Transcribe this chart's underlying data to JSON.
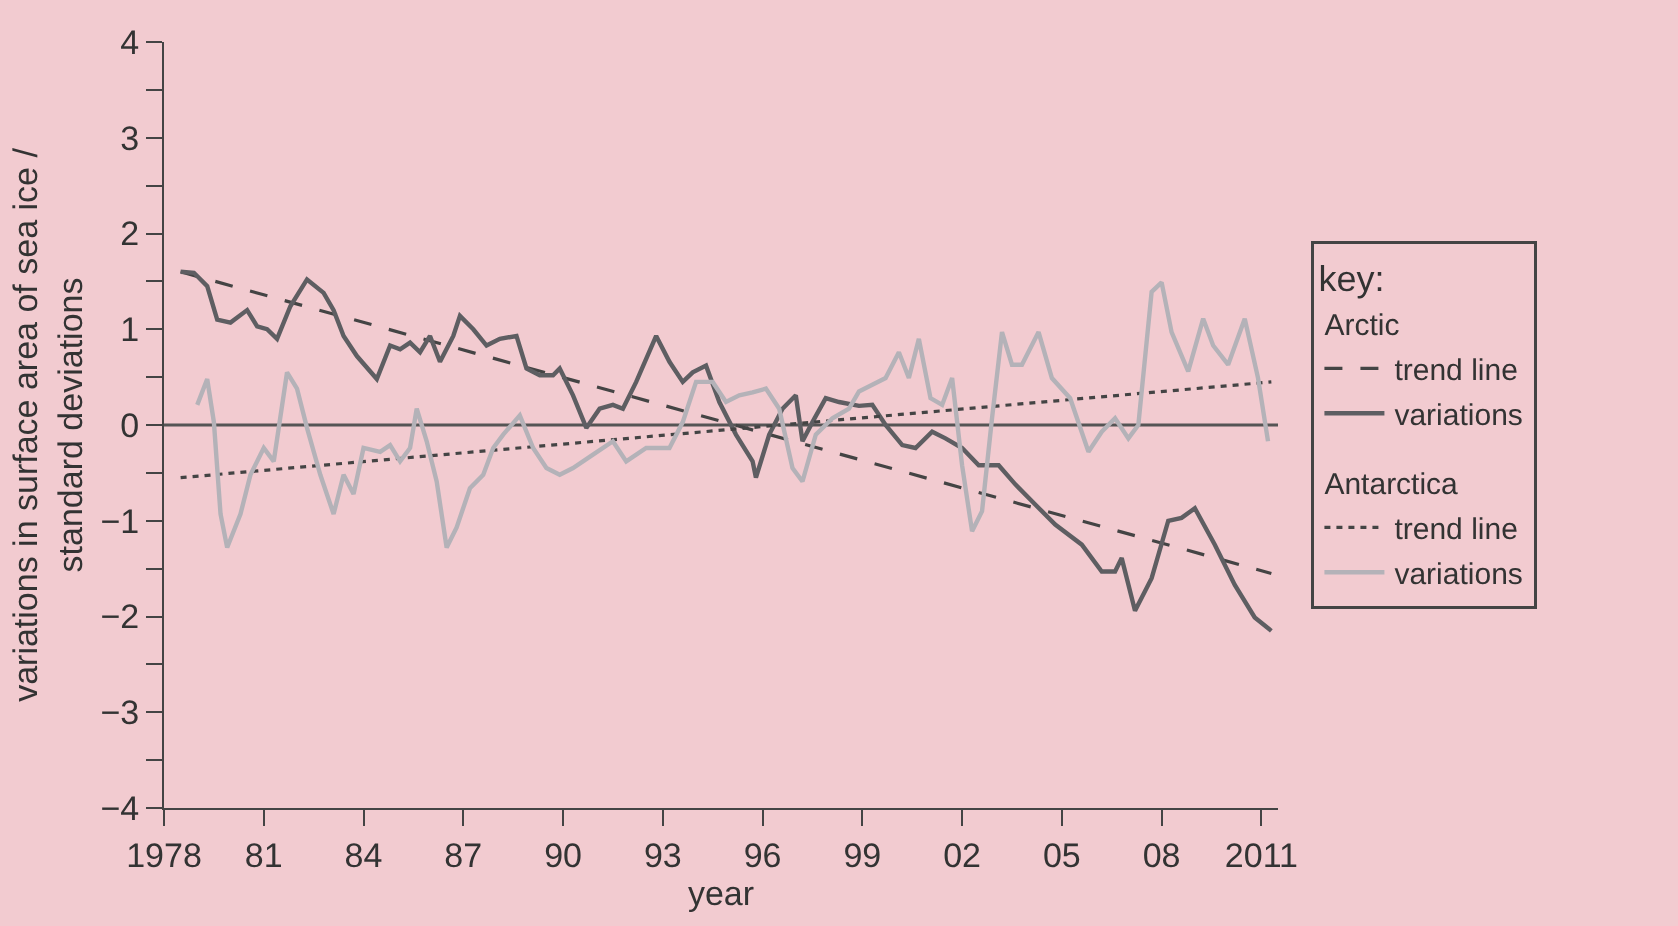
{
  "chart_data": {
    "type": "line",
    "xlabel": "year",
    "ylabel": "variations in surface area of sea ice /\nstandard deviations",
    "legend_title": "key:",
    "annotations": [
      "Arctic",
      "Antarctica"
    ],
    "legend": "right",
    "grid": false,
    "marker": "none",
    "xlim": [
      1978,
      2011.5
    ],
    "xticks": [
      1978,
      {
        "value": 1981,
        "label": "81"
      },
      {
        "value": 1984,
        "label": "84"
      },
      {
        "value": 1987,
        "label": "87"
      },
      {
        "value": 1990,
        "label": "90"
      },
      {
        "value": 1993,
        "label": "93"
      },
      {
        "value": 1996,
        "label": "96"
      },
      {
        "value": 1999,
        "label": "99"
      },
      {
        "value": 2002,
        "label": "02"
      },
      {
        "value": 2005,
        "label": "05"
      },
      {
        "value": 2008,
        "label": "08"
      },
      2011
    ],
    "ylim": [
      -4,
      4
    ],
    "yticks": [
      {
        "value": -4,
        "label": "−4"
      },
      {
        "value": -3.5,
        "label": null
      },
      {
        "value": -3,
        "label": "−3"
      },
      {
        "value": -2.5,
        "label": null
      },
      {
        "value": -2,
        "label": "−2"
      },
      {
        "value": -1.5,
        "label": null
      },
      {
        "value": -1,
        "label": "−1"
      },
      {
        "value": -0.5,
        "label": null
      },
      0,
      {
        "value": 0.5,
        "label": null
      },
      1,
      {
        "value": 1.5,
        "label": null
      },
      2,
      {
        "value": 2.5,
        "label": null
      },
      3,
      {
        "value": 3.5,
        "label": null
      },
      4
    ],
    "ref_lines": [
      {
        "axis": "y",
        "value": 0,
        "color": "#555555",
        "line_style": "solid"
      }
    ],
    "series": [
      {
        "name": "trend line",
        "color": "#444444",
        "line_style": "dashed",
        "x": [
          1978.5,
          2011.3
        ],
        "values": [
          1.6,
          -1.55
        ]
      },
      {
        "name": "variations",
        "color": "#5e5e62",
        "line_style": "solid",
        "x": [
          1978.5,
          1978.9,
          1979.3,
          1979.6,
          1980.0,
          1980.5,
          1980.8,
          1981.1,
          1981.4,
          1981.8,
          1982.3,
          1982.8,
          1983.1,
          1983.4,
          1983.8,
          1984.4,
          1984.8,
          1985.1,
          1985.4,
          1985.7,
          1986.0,
          1986.3,
          1986.7,
          1986.9,
          1987.3,
          1987.7,
          1988.1,
          1988.6,
          1988.9,
          1989.3,
          1989.7,
          1989.9,
          1990.3,
          1990.7,
          1991.1,
          1991.5,
          1991.8,
          1992.2,
          1992.8,
          1993.2,
          1993.6,
          1993.9,
          1994.3,
          1994.7,
          1995.2,
          1995.7,
          1995.8,
          1996.2,
          1996.6,
          1997.0,
          1997.2,
          1997.5,
          1997.9,
          1998.3,
          1998.9,
          1999.3,
          1999.7,
          2000.2,
          2000.6,
          2001.1,
          2001.5,
          2002.0,
          2002.5,
          2003.1,
          2003.6,
          2004.2,
          2004.8,
          2005.6,
          2006.2,
          2006.6,
          2006.8,
          2007.2,
          2007.7,
          2008.2,
          2008.6,
          2009.0,
          2009.6,
          2010.2,
          2010.8,
          2011.3
        ],
        "values": [
          1.6,
          1.59,
          1.45,
          1.1,
          1.07,
          1.2,
          1.03,
          1.0,
          0.9,
          1.24,
          1.52,
          1.38,
          1.2,
          0.93,
          0.72,
          0.48,
          0.83,
          0.79,
          0.86,
          0.76,
          0.93,
          0.66,
          0.93,
          1.14,
          1.0,
          0.83,
          0.9,
          0.93,
          0.59,
          0.52,
          0.52,
          0.59,
          0.31,
          -0.03,
          0.17,
          0.21,
          0.17,
          0.45,
          0.93,
          0.66,
          0.45,
          0.55,
          0.62,
          0.24,
          -0.1,
          -0.38,
          -0.55,
          -0.1,
          0.17,
          0.31,
          -0.17,
          0.03,
          0.28,
          0.24,
          0.2,
          0.21,
          0.0,
          -0.21,
          -0.24,
          -0.07,
          -0.14,
          -0.24,
          -0.42,
          -0.42,
          -0.62,
          -0.83,
          -1.04,
          -1.25,
          -1.53,
          -1.53,
          -1.39,
          -1.94,
          -1.6,
          -1.0,
          -0.97,
          -0.87,
          -1.25,
          -1.67,
          -2.01,
          -2.15
        ]
      },
      {
        "name": "trend line",
        "color": "#444444",
        "line_style": "dotted",
        "x": [
          1978.5,
          2011.3
        ],
        "values": [
          -0.55,
          0.45
        ]
      },
      {
        "name": "variations",
        "color": "#b4b2b8",
        "line_style": "solid",
        "x": [
          1979.0,
          1979.3,
          1979.5,
          1979.7,
          1979.9,
          1980.3,
          1980.6,
          1981.0,
          1981.3,
          1981.7,
          1982.0,
          1982.3,
          1982.7,
          1983.1,
          1983.4,
          1983.7,
          1984.0,
          1984.5,
          1984.8,
          1985.1,
          1985.4,
          1985.6,
          1985.9,
          1986.2,
          1986.5,
          1986.8,
          1987.2,
          1987.6,
          1987.9,
          1988.2,
          1988.7,
          1989.1,
          1989.5,
          1989.9,
          1990.3,
          1990.9,
          1991.5,
          1991.9,
          1992.5,
          1993.2,
          1993.6,
          1994.0,
          1994.5,
          1994.9,
          1995.3,
          1995.7,
          1996.1,
          1996.5,
          1996.9,
          1997.2,
          1997.6,
          1998.1,
          1998.6,
          1998.9,
          1999.3,
          1999.7,
          2000.1,
          2000.4,
          2000.7,
          2001.05,
          2001.4,
          2001.7,
          2002.0,
          2002.3,
          2002.6,
          2002.9,
          2003.2,
          2003.5,
          2003.8,
          2004.3,
          2004.7,
          2005.25,
          2005.8,
          2006.2,
          2006.6,
          2007.0,
          2007.3,
          2007.7,
          2008.0,
          2008.3,
          2008.8,
          2009.25,
          2009.55,
          2010.0,
          2010.5,
          2010.9,
          2011.2
        ],
        "values": [
          0.21,
          0.48,
          0.03,
          -0.93,
          -1.28,
          -0.93,
          -0.52,
          -0.24,
          -0.38,
          0.55,
          0.38,
          -0.03,
          -0.52,
          -0.93,
          -0.52,
          -0.72,
          -0.24,
          -0.28,
          -0.21,
          -0.38,
          -0.24,
          0.17,
          -0.17,
          -0.59,
          -1.28,
          -1.07,
          -0.66,
          -0.52,
          -0.24,
          -0.1,
          0.1,
          -0.24,
          -0.45,
          -0.52,
          -0.45,
          -0.31,
          -0.17,
          -0.38,
          -0.24,
          -0.24,
          0.03,
          0.45,
          0.45,
          0.24,
          0.31,
          0.34,
          0.38,
          0.17,
          -0.45,
          -0.59,
          -0.1,
          0.07,
          0.17,
          0.35,
          0.42,
          0.49,
          0.76,
          0.49,
          0.9,
          0.28,
          0.21,
          0.49,
          -0.42,
          -1.11,
          -0.9,
          0.07,
          0.97,
          0.63,
          0.63,
          0.97,
          0.49,
          0.28,
          -0.28,
          -0.07,
          0.07,
          -0.14,
          0.0,
          1.39,
          1.49,
          0.97,
          0.56,
          1.11,
          0.83,
          0.63,
          1.11,
          0.49,
          -0.17
        ]
      }
    ]
  }
}
